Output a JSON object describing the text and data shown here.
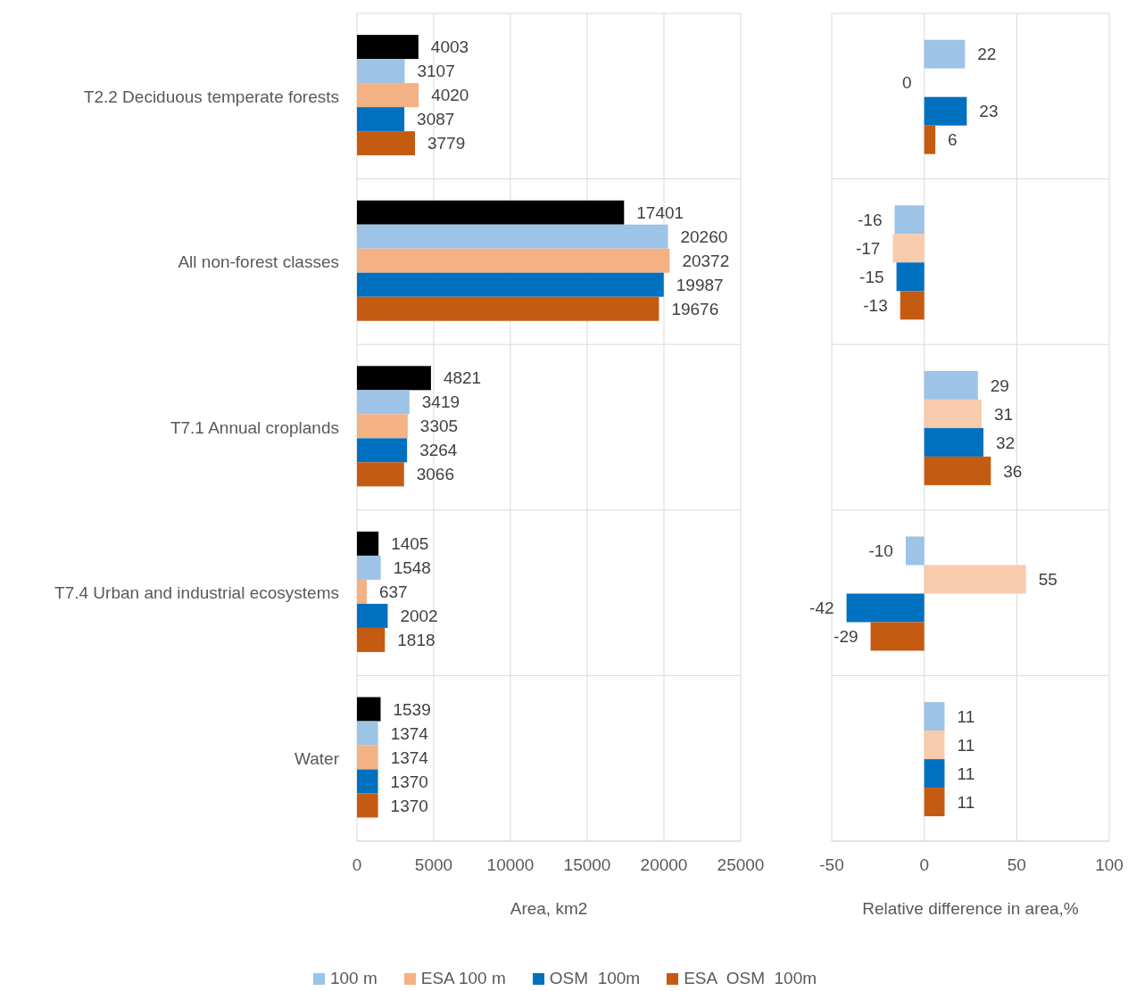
{
  "chart_data": [
    {
      "type": "bar",
      "orientation": "horizontal",
      "categories": [
        "T2.2 Deciduous temperate forests",
        "All non-forest classes",
        "T7.1 Annual croplands",
        "T7.4 Urban and industrial ecosystems",
        "Water"
      ],
      "series": [
        {
          "color": "#000000",
          "values": [
            4003,
            17401,
            4821,
            1405,
            1539
          ]
        },
        {
          "name": "100 m",
          "color": "#9dc3e6",
          "values": [
            3107,
            20260,
            3419,
            1548,
            1374
          ]
        },
        {
          "name": "ESA 100 m",
          "color": "#f4b183",
          "values": [
            4020,
            20372,
            3305,
            637,
            1374
          ]
        },
        {
          "name": "OSM  100m",
          "color": "#0070c0",
          "values": [
            3087,
            19987,
            3264,
            2002,
            1370
          ]
        },
        {
          "name": "ESA  OSM  100m",
          "color": "#c55a11",
          "values": [
            3779,
            19676,
            3066,
            1818,
            1370
          ]
        }
      ],
      "xlim": [
        0,
        25000
      ],
      "xticks": [
        0,
        5000,
        10000,
        15000,
        20000,
        25000
      ],
      "xlabel": "Area, km2",
      "grid": true,
      "data_labels": true,
      "legend": "bottom"
    },
    {
      "type": "bar",
      "orientation": "horizontal",
      "categories": [
        null,
        null,
        null,
        null,
        null
      ],
      "series": [
        {
          "color": "#9dc3e6",
          "values": [
            22,
            -16,
            29,
            -10,
            11
          ]
        },
        {
          "color": "#f8cbad",
          "values": [
            0,
            -17,
            31,
            55,
            11
          ]
        },
        {
          "color": "#0070c0",
          "values": [
            23,
            -15,
            32,
            -42,
            11
          ]
        },
        {
          "color": "#c55a11",
          "values": [
            6,
            -13,
            36,
            -29,
            11
          ]
        }
      ],
      "xlim": [
        -50,
        100
      ],
      "xticks": [
        -50,
        0,
        50,
        100
      ],
      "xlabel": "Relative difference in area,%",
      "grid": true,
      "data_labels": true,
      "tick_labels": "x"
    }
  ]
}
